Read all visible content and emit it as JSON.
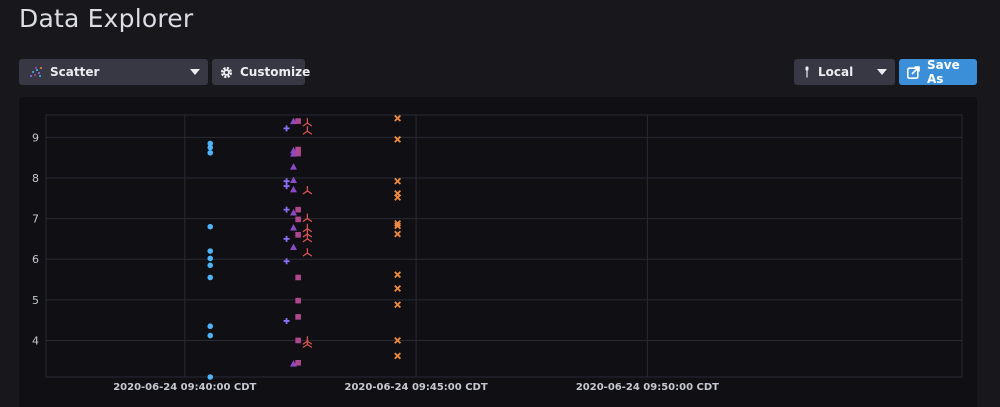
{
  "page": {
    "title": "Data Explorer"
  },
  "toolbar": {
    "viz_label": "Scatter",
    "customize_label": "Customize",
    "timezone_label": "Local",
    "save_label": "Save As"
  },
  "colors": {
    "background": "#17171c",
    "panel": "#0f0f14",
    "button": "#383844",
    "accent": "#3b8fd8",
    "grid": "#2a2a33"
  },
  "icons": {
    "viz": "scatter-icon",
    "customize": "gear-icon",
    "timezone": "pin-icon",
    "save": "export-icon"
  },
  "chart_data": {
    "type": "scatter",
    "title": "",
    "xlabel": "",
    "ylabel": "",
    "grid": true,
    "x_tick_labels": [
      "2020-06-24 09:40:00 CDT",
      "2020-06-24 09:45:00 CDT",
      "2020-06-24 09:50:00 CDT"
    ],
    "xlim_minutes_after_0935": [
      2,
      21.8
    ],
    "y_ticks": [
      4,
      5,
      6,
      7,
      8,
      9
    ],
    "ylim": [
      3.1,
      9.55
    ],
    "series": [
      {
        "shape": "circle",
        "color": "#4fb4f7",
        "points": [
          [
            40.55,
            8.85
          ],
          [
            40.55,
            8.75
          ],
          [
            40.55,
            8.62
          ],
          [
            40.55,
            6.8
          ],
          [
            40.55,
            6.2
          ],
          [
            40.55,
            6.02
          ],
          [
            40.55,
            5.85
          ],
          [
            40.55,
            5.55
          ],
          [
            40.55,
            4.35
          ],
          [
            40.55,
            4.12
          ],
          [
            40.55,
            3.1
          ]
        ]
      },
      {
        "shape": "plus",
        "color": "#8d6ff5",
        "points": [
          [
            42.2,
            9.22
          ],
          [
            42.2,
            7.92
          ],
          [
            42.2,
            7.8
          ],
          [
            42.2,
            7.22
          ],
          [
            42.2,
            6.5
          ],
          [
            42.2,
            5.95
          ],
          [
            42.2,
            4.48
          ]
        ]
      },
      {
        "shape": "triangle",
        "color": "#8a4bc4",
        "points": [
          [
            42.35,
            9.4
          ],
          [
            42.35,
            8.68
          ],
          [
            42.35,
            8.6
          ],
          [
            42.35,
            8.28
          ],
          [
            42.35,
            7.95
          ],
          [
            42.35,
            7.72
          ],
          [
            42.35,
            7.15
          ],
          [
            42.35,
            6.78
          ],
          [
            42.35,
            6.3
          ],
          [
            42.35,
            3.43
          ]
        ]
      },
      {
        "shape": "square",
        "color": "#b0468d",
        "points": [
          [
            42.45,
            9.4
          ],
          [
            42.45,
            8.7
          ],
          [
            42.45,
            8.6
          ],
          [
            42.45,
            7.22
          ],
          [
            42.45,
            6.98
          ],
          [
            42.45,
            6.6
          ],
          [
            42.45,
            5.55
          ],
          [
            42.45,
            4.98
          ],
          [
            42.45,
            4.58
          ],
          [
            42.45,
            4.0
          ],
          [
            42.45,
            3.45
          ]
        ]
      },
      {
        "shape": "tri-star",
        "color": "#d9534f",
        "points": [
          [
            42.65,
            9.35
          ],
          [
            42.65,
            9.15
          ],
          [
            42.65,
            7.68
          ],
          [
            42.65,
            7.0
          ],
          [
            42.65,
            6.75
          ],
          [
            42.65,
            6.62
          ],
          [
            42.65,
            6.5
          ],
          [
            42.65,
            6.15
          ],
          [
            42.65,
            3.98
          ],
          [
            42.65,
            3.9
          ]
        ]
      },
      {
        "shape": "x",
        "color": "#f08a3e",
        "points": [
          [
            44.6,
            9.47
          ],
          [
            44.6,
            8.95
          ],
          [
            44.6,
            7.92
          ],
          [
            44.6,
            7.62
          ],
          [
            44.6,
            7.52
          ],
          [
            44.6,
            6.88
          ],
          [
            44.6,
            6.82
          ],
          [
            44.6,
            6.62
          ],
          [
            44.6,
            5.62
          ],
          [
            44.6,
            5.28
          ],
          [
            44.6,
            4.88
          ],
          [
            44.6,
            4.0
          ],
          [
            44.6,
            3.62
          ]
        ]
      }
    ]
  }
}
